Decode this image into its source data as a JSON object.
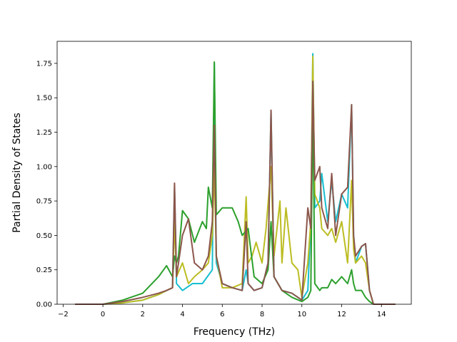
{
  "chart_data": {
    "type": "line",
    "title": "",
    "xlabel": "Frequency (THz)",
    "ylabel": "Partial Density of States",
    "xlim": [
      -2.3,
      15.5
    ],
    "ylim": [
      0,
      1.91
    ],
    "xticks": [
      -2,
      0,
      2,
      4,
      6,
      8,
      10,
      12,
      14
    ],
    "xtick_labels": [
      "−2",
      "0",
      "2",
      "4",
      "6",
      "8",
      "10",
      "12",
      "14"
    ],
    "yticks": [
      0,
      0.25,
      0.5,
      0.75,
      1.0,
      1.25,
      1.5,
      1.75
    ],
    "ytick_labels": [
      "0.00",
      "0.25",
      "0.50",
      "0.75",
      "1.00",
      "1.25",
      "1.50",
      "1.75"
    ],
    "grid": false,
    "legend": "none",
    "series": [
      {
        "color": "#17becf",
        "x": [
          -1.4,
          0,
          1.0,
          2.0,
          2.8,
          3.2,
          3.5,
          3.6,
          3.7,
          4.0,
          4.5,
          5.0,
          5.5,
          5.6,
          5.7,
          6.0,
          6.5,
          7.0,
          7.2,
          7.3,
          7.6,
          8.0,
          8.3,
          8.45,
          8.6,
          9.0,
          9.5,
          10.0,
          10.3,
          10.45,
          10.55,
          10.65,
          10.9,
          11.0,
          11.3,
          11.5,
          11.7,
          12.0,
          12.3,
          12.5,
          12.6,
          12.7,
          13.0,
          13.2,
          13.4,
          13.6,
          14.0,
          14.7
        ],
        "values": [
          0,
          0,
          0.01,
          0.03,
          0.07,
          0.1,
          0.12,
          0.85,
          0.15,
          0.1,
          0.15,
          0.15,
          0.25,
          1.75,
          0.3,
          0.15,
          0.12,
          0.1,
          0.25,
          0.15,
          0.1,
          0.12,
          0.3,
          1.4,
          0.2,
          0.1,
          0.08,
          0.03,
          0.1,
          0.6,
          1.82,
          0.7,
          0.75,
          0.95,
          0.6,
          0.9,
          0.6,
          0.8,
          0.7,
          1.45,
          0.5,
          0.3,
          0.42,
          0.44,
          0.1,
          0,
          0,
          0
        ]
      },
      {
        "color": "#bcbd22",
        "x": [
          -1.4,
          0,
          1.0,
          2.0,
          2.8,
          3.2,
          3.5,
          3.6,
          3.7,
          4.0,
          4.3,
          4.6,
          5.0,
          5.3,
          5.5,
          5.6,
          5.7,
          6.0,
          6.5,
          7.0,
          7.2,
          7.3,
          7.5,
          7.7,
          8.0,
          8.2,
          8.45,
          8.6,
          8.9,
          9.0,
          9.2,
          9.5,
          9.8,
          10.0,
          10.3,
          10.45,
          10.55,
          10.65,
          10.9,
          11.0,
          11.3,
          11.5,
          11.7,
          12.0,
          12.3,
          12.5,
          12.6,
          12.7,
          13.0,
          13.2,
          13.4,
          13.6,
          14.0,
          14.7
        ],
        "values": [
          0,
          0,
          0.01,
          0.03,
          0.07,
          0.1,
          0.12,
          0.6,
          0.2,
          0.3,
          0.15,
          0.2,
          0.25,
          0.3,
          0.5,
          1.0,
          0.35,
          0.12,
          0.12,
          0.15,
          0.78,
          0.3,
          0.35,
          0.45,
          0.3,
          0.55,
          1.0,
          0.35,
          0.75,
          0.3,
          0.7,
          0.3,
          0.25,
          0.05,
          0.3,
          0.6,
          1.8,
          0.8,
          0.7,
          0.55,
          0.5,
          0.55,
          0.45,
          0.6,
          0.3,
          0.9,
          0.4,
          0.3,
          0.35,
          0.3,
          0.1,
          0,
          0,
          0
        ]
      },
      {
        "color": "#2ca02c",
        "x": [
          -1.4,
          0,
          1.0,
          2.0,
          2.8,
          3.2,
          3.5,
          3.6,
          3.7,
          3.8,
          4.0,
          4.3,
          4.6,
          5.0,
          5.2,
          5.3,
          5.5,
          5.6,
          5.7,
          6.0,
          6.5,
          6.8,
          7.0,
          7.3,
          7.6,
          8.0,
          8.3,
          8.45,
          8.6,
          9.0,
          9.5,
          10.0,
          10.3,
          10.45,
          10.55,
          10.65,
          10.9,
          11.0,
          11.3,
          11.5,
          11.7,
          12.0,
          12.3,
          12.5,
          12.6,
          12.7,
          13.0,
          13.2,
          13.4,
          13.6,
          14.0,
          14.7
        ],
        "values": [
          0,
          0,
          0.03,
          0.08,
          0.2,
          0.28,
          0.2,
          0.35,
          0.3,
          0.35,
          0.68,
          0.62,
          0.45,
          0.6,
          0.55,
          0.85,
          0.7,
          1.76,
          0.65,
          0.7,
          0.7,
          0.6,
          0.5,
          0.55,
          0.2,
          0.15,
          0.25,
          0.6,
          0.2,
          0.1,
          0.05,
          0.02,
          0.05,
          0.1,
          1.5,
          0.15,
          0.1,
          0.12,
          0.12,
          0.18,
          0.15,
          0.2,
          0.15,
          0.25,
          0.15,
          0.1,
          0.1,
          0.05,
          0.02,
          0,
          0,
          0
        ]
      },
      {
        "color": "#8c564b",
        "x": [
          -1.4,
          0,
          1.0,
          2.0,
          2.8,
          3.2,
          3.5,
          3.6,
          3.7,
          3.8,
          4.0,
          4.3,
          4.6,
          5.0,
          5.3,
          5.5,
          5.6,
          5.7,
          6.0,
          6.5,
          7.0,
          7.2,
          7.3,
          7.6,
          8.0,
          8.3,
          8.45,
          8.6,
          9.0,
          9.5,
          10.0,
          10.3,
          10.45,
          10.55,
          10.65,
          10.9,
          11.0,
          11.3,
          11.5,
          11.7,
          12.0,
          12.3,
          12.5,
          12.6,
          12.7,
          13.0,
          13.2,
          13.4,
          13.6,
          14.0,
          14.7
        ],
        "values": [
          0,
          0,
          0.02,
          0.05,
          0.08,
          0.1,
          0.12,
          0.88,
          0.2,
          0.3,
          0.5,
          0.62,
          0.3,
          0.25,
          0.35,
          0.6,
          1.3,
          0.35,
          0.15,
          0.12,
          0.1,
          0.6,
          0.15,
          0.1,
          0.12,
          0.3,
          1.41,
          0.2,
          0.1,
          0.08,
          0.03,
          0.7,
          0.55,
          1.62,
          0.9,
          1.0,
          0.7,
          0.55,
          0.95,
          0.5,
          0.8,
          0.85,
          1.45,
          0.5,
          0.35,
          0.42,
          0.44,
          0.1,
          0,
          0,
          0
        ]
      }
    ]
  }
}
